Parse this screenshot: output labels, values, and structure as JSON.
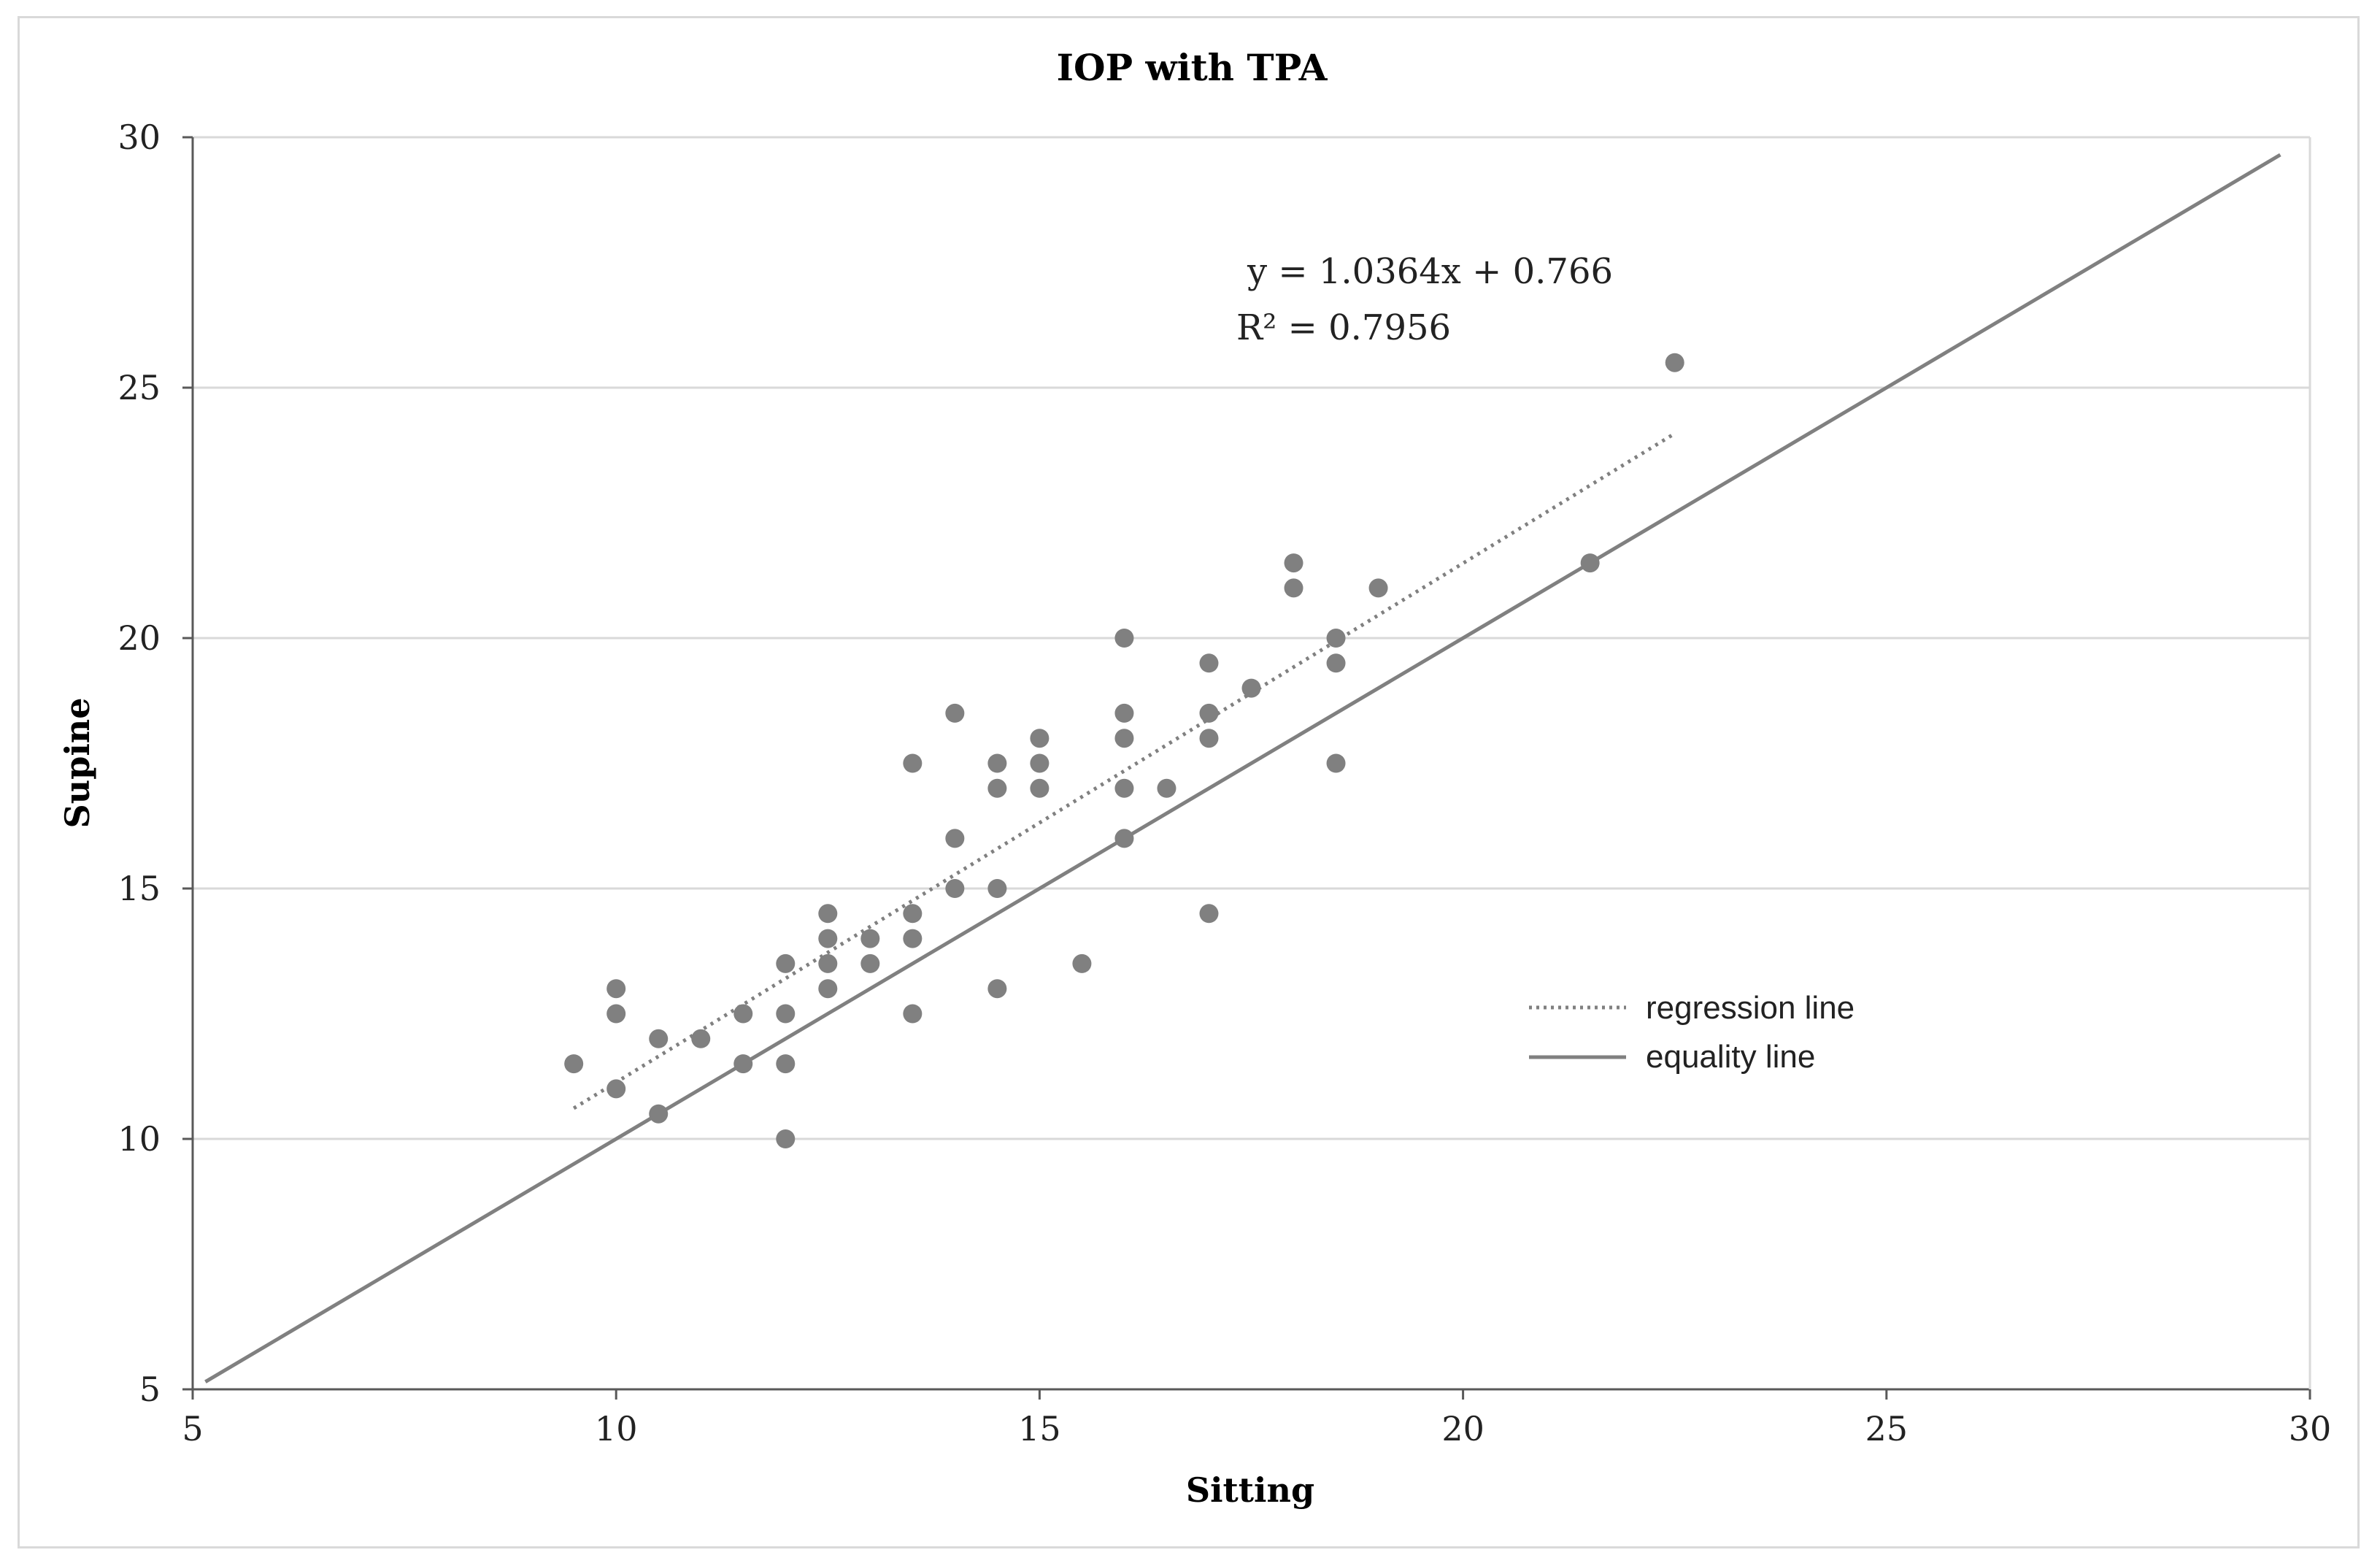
{
  "chart_data": {
    "type": "scatter",
    "title": "IOP with TPA",
    "xlabel": "Sitting",
    "ylabel": "Supine",
    "xlim": [
      5,
      30
    ],
    "ylim": [
      5,
      30
    ],
    "x_ticks": [
      5,
      10,
      15,
      20,
      25,
      30
    ],
    "y_ticks": [
      5,
      10,
      15,
      20,
      25,
      30
    ],
    "grid": "horizontal",
    "series": [
      {
        "name": "measurements",
        "color": "#808080",
        "points": [
          [
            9.5,
            11.5
          ],
          [
            10,
            13
          ],
          [
            10,
            12.5
          ],
          [
            10,
            11
          ],
          [
            10.5,
            12
          ],
          [
            10.5,
            10.5
          ],
          [
            11,
            12
          ],
          [
            11.5,
            12.5
          ],
          [
            11.5,
            11.5
          ],
          [
            12,
            13.5
          ],
          [
            12,
            12.5
          ],
          [
            12,
            11.5
          ],
          [
            12,
            10
          ],
          [
            12.5,
            14.5
          ],
          [
            12.5,
            14
          ],
          [
            12.5,
            13.5
          ],
          [
            12.5,
            13
          ],
          [
            13,
            14
          ],
          [
            13,
            13.5
          ],
          [
            13.5,
            17.5
          ],
          [
            13.5,
            14.5
          ],
          [
            13.5,
            14
          ],
          [
            13.5,
            12.5
          ],
          [
            14,
            18.5
          ],
          [
            14,
            16
          ],
          [
            14,
            15
          ],
          [
            14.5,
            17.5
          ],
          [
            14.5,
            17
          ],
          [
            14.5,
            15
          ],
          [
            14.5,
            13
          ],
          [
            15,
            18
          ],
          [
            15,
            17.5
          ],
          [
            15,
            17
          ],
          [
            15.5,
            13.5
          ],
          [
            16,
            20
          ],
          [
            16,
            18.5
          ],
          [
            16,
            18
          ],
          [
            16,
            17
          ],
          [
            16,
            16
          ],
          [
            16.5,
            17
          ],
          [
            17,
            19.5
          ],
          [
            17,
            18.5
          ],
          [
            17,
            18
          ],
          [
            17,
            14.5
          ],
          [
            17.5,
            19
          ],
          [
            18,
            21.5
          ],
          [
            18,
            21
          ],
          [
            18.5,
            20
          ],
          [
            18.5,
            19.5
          ],
          [
            18.5,
            17.5
          ],
          [
            19,
            21
          ],
          [
            21.5,
            21.5
          ],
          [
            22.5,
            25.5
          ]
        ]
      }
    ],
    "lines": [
      {
        "name": "regression line",
        "style": "dotted",
        "color": "#808080",
        "slope": 1.0364,
        "intercept": 0.766,
        "x_range": [
          9.5,
          22.5
        ]
      },
      {
        "name": "equality line",
        "style": "solid",
        "color": "#808080",
        "slope": 1,
        "intercept": 0,
        "x_range": [
          5.15,
          29.65
        ]
      }
    ],
    "annotations": {
      "equation": "y = 1.0364x + 0.766",
      "r_squared": "R² = 0.7956"
    },
    "legend": {
      "placement": "center-right",
      "items": [
        "regression line",
        "equality line"
      ]
    }
  }
}
